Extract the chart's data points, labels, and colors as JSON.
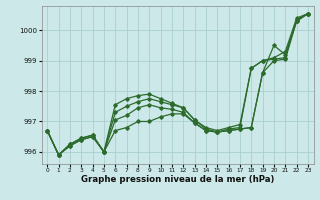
{
  "xlabel": "Graphe pression niveau de la mer (hPa)",
  "background_color": "#cce8e8",
  "grid_color": "#aacece",
  "line_color": "#2d6b2d",
  "x_ticks": [
    0,
    1,
    2,
    3,
    4,
    5,
    6,
    7,
    8,
    9,
    10,
    11,
    12,
    13,
    14,
    15,
    16,
    17,
    18,
    19,
    20,
    21,
    22,
    23
  ],
  "ylim": [
    995.6,
    1000.8
  ],
  "yticks": [
    996,
    997,
    998,
    999,
    1000
  ],
  "series": [
    [
      996.7,
      995.9,
      996.2,
      996.4,
      996.5,
      996.0,
      996.7,
      996.8,
      997.0,
      997.0,
      997.15,
      997.25,
      997.25,
      996.95,
      996.7,
      996.65,
      996.7,
      996.75,
      996.8,
      998.6,
      999.5,
      999.2,
      1000.3,
      1000.55
    ],
    [
      996.7,
      995.9,
      996.2,
      996.4,
      996.5,
      996.0,
      997.05,
      997.2,
      997.45,
      997.55,
      997.45,
      997.4,
      997.3,
      996.95,
      996.7,
      996.65,
      996.7,
      996.75,
      996.8,
      998.6,
      999.0,
      999.05,
      1000.3,
      1000.55
    ],
    [
      996.7,
      995.9,
      996.25,
      996.45,
      996.55,
      996.0,
      997.3,
      997.5,
      997.65,
      997.75,
      997.65,
      997.55,
      997.45,
      997.05,
      996.75,
      996.65,
      996.75,
      996.8,
      998.75,
      999.0,
      999.05,
      999.1,
      1000.35,
      1000.55
    ],
    [
      996.7,
      995.9,
      996.25,
      996.45,
      996.55,
      996.0,
      997.55,
      997.75,
      997.85,
      997.9,
      997.75,
      997.6,
      997.45,
      997.05,
      996.8,
      996.7,
      996.8,
      996.9,
      998.75,
      999.0,
      999.1,
      999.3,
      1000.4,
      1000.55
    ]
  ]
}
